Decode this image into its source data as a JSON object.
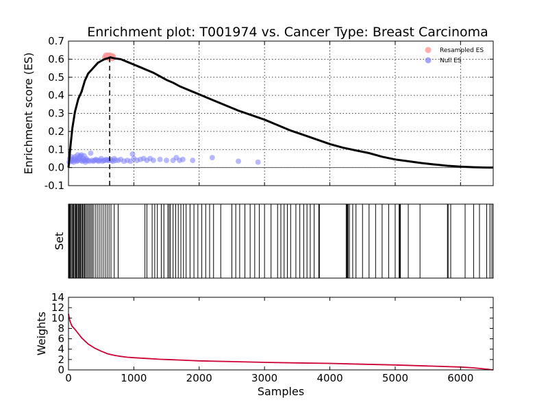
{
  "chart_data": [
    {
      "type": "line",
      "title": "Enrichment plot: T001974 vs. Cancer Type: Breast Carcinoma",
      "xlabel": "",
      "ylabel": "Enrichment score (ES)",
      "xlim": [
        0,
        6500
      ],
      "ylim": [
        -0.1,
        0.7
      ],
      "yticks": [
        "-0.1",
        "0.0",
        "0.1",
        "0.2",
        "0.3",
        "0.4",
        "0.5",
        "0.6",
        "0.7"
      ],
      "xticks": [
        1000,
        2000,
        3000,
        4000,
        5000,
        6000
      ],
      "grid": true,
      "legend_position": "top-right",
      "legend": [
        {
          "label": "Resampled ES",
          "color": "#ff9999"
        },
        {
          "label": "Null ES",
          "color": "#8080ff"
        }
      ],
      "es_line": {
        "x": [
          0,
          30,
          60,
          100,
          150,
          200,
          250,
          300,
          350,
          400,
          450,
          500,
          550,
          600,
          640,
          700,
          800,
          900,
          1000,
          1100,
          1200,
          1300,
          1400,
          1500,
          1600,
          1700,
          1800,
          1900,
          2000,
          2200,
          2400,
          2600,
          2800,
          3000,
          3200,
          3400,
          3600,
          3800,
          4000,
          4200,
          4400,
          4600,
          4800,
          5000,
          5200,
          5400,
          5600,
          5800,
          6000,
          6200,
          6400,
          6500
        ],
        "y": [
          0.0,
          0.12,
          0.22,
          0.31,
          0.38,
          0.42,
          0.48,
          0.52,
          0.54,
          0.56,
          0.58,
          0.59,
          0.6,
          0.605,
          0.61,
          0.605,
          0.6,
          0.585,
          0.57,
          0.555,
          0.54,
          0.525,
          0.505,
          0.485,
          0.47,
          0.45,
          0.435,
          0.42,
          0.405,
          0.375,
          0.345,
          0.315,
          0.29,
          0.265,
          0.235,
          0.205,
          0.18,
          0.155,
          0.13,
          0.11,
          0.095,
          0.08,
          0.06,
          0.045,
          0.035,
          0.025,
          0.017,
          0.01,
          0.005,
          0.002,
          0.0,
          0.0
        ]
      },
      "peak_x": 630,
      "resampled_es": {
        "x": [
          560,
          575,
          585,
          595,
          600,
          610,
          615,
          620,
          625,
          630,
          640,
          650,
          660,
          670,
          680
        ],
        "y": [
          0.61,
          0.62,
          0.61,
          0.615,
          0.62,
          0.61,
          0.61,
          0.62,
          0.605,
          0.615,
          0.62,
          0.61,
          0.615,
          0.605,
          0.615
        ]
      },
      "null_es": {
        "x": [
          10,
          20,
          30,
          40,
          50,
          60,
          70,
          80,
          90,
          100,
          110,
          120,
          130,
          140,
          150,
          160,
          170,
          180,
          190,
          200,
          210,
          220,
          230,
          240,
          250,
          260,
          270,
          280,
          300,
          320,
          340,
          360,
          380,
          400,
          420,
          440,
          460,
          480,
          500,
          520,
          540,
          560,
          580,
          600,
          620,
          640,
          660,
          680,
          700,
          720,
          760,
          800,
          850,
          900,
          950,
          980,
          1000,
          1050,
          1100,
          1150,
          1200,
          1250,
          1300,
          1400,
          1500,
          1600,
          1650,
          1700,
          1750,
          1900,
          2200,
          2600,
          2900
        ],
        "y": [
          0.03,
          0.05,
          0.04,
          0.06,
          0.035,
          0.045,
          0.04,
          0.03,
          0.05,
          0.06,
          0.04,
          0.045,
          0.035,
          0.07,
          0.04,
          0.05,
          0.06,
          0.065,
          0.04,
          0.07,
          0.035,
          0.05,
          0.04,
          0.065,
          0.04,
          0.03,
          0.05,
          0.04,
          0.04,
          0.035,
          0.08,
          0.04,
          0.035,
          0.04,
          0.045,
          0.04,
          0.035,
          0.04,
          0.05,
          0.035,
          0.04,
          0.04,
          0.045,
          0.04,
          0.04,
          0.045,
          0.04,
          0.035,
          0.05,
          0.04,
          0.04,
          0.045,
          0.035,
          0.04,
          0.035,
          0.075,
          0.05,
          0.04,
          0.045,
          0.05,
          0.04,
          0.05,
          0.04,
          0.045,
          0.04,
          0.04,
          0.055,
          0.04,
          0.045,
          0.04,
          0.055,
          0.035,
          0.03
        ]
      }
    },
    {
      "type": "heatmap",
      "ylabel": "Set",
      "xlim": [
        0,
        6500
      ],
      "hits": [
        5,
        15,
        25,
        40,
        55,
        70,
        80,
        95,
        110,
        120,
        135,
        150,
        160,
        175,
        185,
        200,
        215,
        230,
        245,
        260,
        280,
        300,
        320,
        340,
        360,
        380,
        410,
        440,
        470,
        500,
        530,
        560,
        590,
        620,
        650,
        700,
        760,
        1170,
        1200,
        1280,
        1320,
        1360,
        1420,
        1460,
        1520,
        1540,
        1560,
        1600,
        1640,
        1680,
        1720,
        1760,
        1800,
        1860,
        1920,
        1980,
        2040,
        2100,
        2160,
        2220,
        2330,
        2500,
        2560,
        2620,
        2700,
        2780,
        2850,
        2920,
        3000,
        3100,
        3200,
        3250,
        3300,
        3350,
        3400,
        3480,
        3540,
        3600,
        3650,
        3700,
        3760,
        3830,
        3840,
        4250,
        4260,
        4270,
        4280,
        4300,
        4350,
        4400,
        4500,
        4600,
        4700,
        4800,
        4900,
        5000,
        5060,
        5070,
        5080,
        5200,
        5380,
        5800,
        5810,
        5850,
        6070,
        6200,
        6290,
        6400,
        6450,
        6480
      ]
    },
    {
      "type": "line",
      "xlabel": "Samples",
      "ylabel": "Weights",
      "xlim": [
        0,
        6500
      ],
      "ylim": [
        0,
        14
      ],
      "xticks": [
        0,
        1000,
        2000,
        3000,
        4000,
        5000,
        6000
      ],
      "yticks": [
        0,
        2,
        4,
        6,
        8,
        10,
        12,
        14
      ],
      "series": [
        {
          "color": "#cc0033",
          "x": [
            0,
            20,
            50,
            100,
            150,
            200,
            250,
            300,
            400,
            500,
            600,
            700,
            800,
            900,
            1000,
            1200,
            1400,
            1600,
            1800,
            2000,
            2500,
            3000,
            3500,
            4000,
            4500,
            5000,
            5500,
            6000,
            6200,
            6400,
            6500
          ],
          "y": [
            10.8,
            9.5,
            8.5,
            7.8,
            7.0,
            6.2,
            5.6,
            5.0,
            4.2,
            3.6,
            3.1,
            2.8,
            2.6,
            2.45,
            2.35,
            2.2,
            2.05,
            1.95,
            1.85,
            1.75,
            1.6,
            1.45,
            1.35,
            1.25,
            1.1,
            0.95,
            0.75,
            0.55,
            0.4,
            0.15,
            0.0
          ]
        }
      ]
    }
  ]
}
